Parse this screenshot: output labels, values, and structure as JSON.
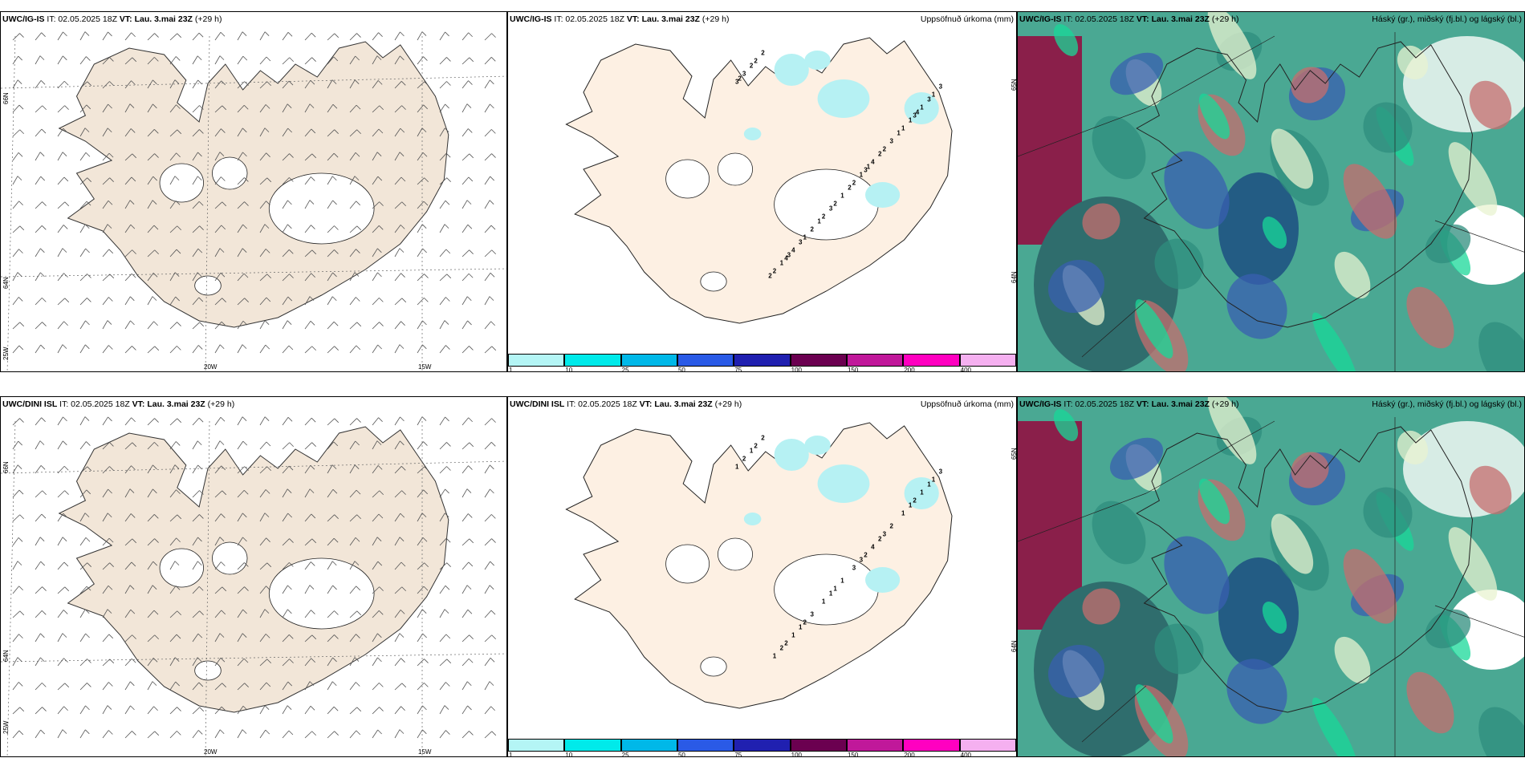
{
  "rows": [
    {
      "wind": {
        "model": "UWC/IG-IS",
        "it": "IT: 02.05.2025 18Z",
        "vt_label": "VT:",
        "vt": "Lau. 3.mai 23Z",
        "lead": "(+29 h)"
      },
      "precip": {
        "model": "UWC/IG-IS",
        "it": "IT: 02.05.2025 18Z",
        "vt_label": "VT:",
        "vt": "Lau. 3.mai 23Z",
        "lead": "(+29 h)",
        "title_right": "Uppsöfnuð úrkoma (mm)"
      },
      "cloud": {
        "model": "UWC/IG-IS",
        "it": "IT: 02.05.2025 18Z",
        "vt_label": "VT:",
        "vt": "Lau. 3.mai 23Z",
        "lead": "(+29 h)",
        "title_right": "Háský (gr.), miðský (fj.bl.) og lágský (bl.)"
      }
    },
    {
      "wind": {
        "model": "UWC/DINI ISL",
        "it": "IT: 02.05.2025 18Z",
        "vt_label": "VT:",
        "vt": "Lau. 3.mai 23Z",
        "lead": "(+29 h)"
      },
      "precip": {
        "model": "UWC/DINI ISL",
        "it": "IT: 02.05.2025 18Z",
        "vt_label": "VT:",
        "vt": "Lau. 3.mai 23Z",
        "lead": "(+29 h)",
        "title_right": "Uppsöfnuð úrkoma (mm)"
      },
      "cloud": {
        "model": "UWC/IG-IS",
        "it": "IT: 02.05.2025 18Z",
        "vt_label": "VT:",
        "vt": "Lau. 3.mai 23Z",
        "lead": "(+29 h)",
        "title_right": "Háský (gr.), miðský (fj.bl.) og lágský (bl.)"
      }
    }
  ],
  "map_labels": {
    "lat_66": "66N",
    "lat_64": "64N",
    "lon_25": "25W",
    "lon_20": "20W",
    "lon_15": "15W",
    "precip_lat_65": "65N",
    "precip_lat_64": "64N"
  },
  "colorbar": {
    "ticks": [
      "1",
      "10",
      "25",
      "50",
      "75",
      "100",
      "150",
      "200",
      "400"
    ],
    "colors": [
      "#b4f5f5",
      "#00eaea",
      "#00b8e8",
      "#2a5ae6",
      "#2020b0",
      "#6b0050",
      "#c0189a",
      "#ff00c0",
      "#f5b0f0"
    ]
  },
  "precip_values_top": [
    "3",
    "3",
    "4",
    "3",
    "2",
    "2",
    "2",
    "1",
    "1",
    "2",
    "2",
    "1",
    "2",
    "3",
    "4",
    "4",
    "1",
    "1",
    "2",
    "3",
    "2",
    "3",
    "1",
    "1",
    "1",
    "3",
    "2",
    "2",
    "3",
    "3",
    "2",
    "2",
    "1",
    "1",
    "2",
    "1",
    "3",
    "4"
  ],
  "precip_values_bottom": [
    "1",
    "2",
    "2",
    "2",
    "1",
    "2",
    "3",
    "2",
    "1",
    "3",
    "1",
    "1",
    "1",
    "2",
    "4",
    "1",
    "1",
    "1",
    "2",
    "2",
    "3",
    "3",
    "3",
    "2",
    "1",
    "1",
    "1",
    "2",
    "1",
    "1"
  ],
  "colors": {
    "land": "#f2e6d8",
    "land_precip": "#fdf0e3",
    "precip_light": "#b6f1f3",
    "cloud_base": "#4aa893"
  }
}
